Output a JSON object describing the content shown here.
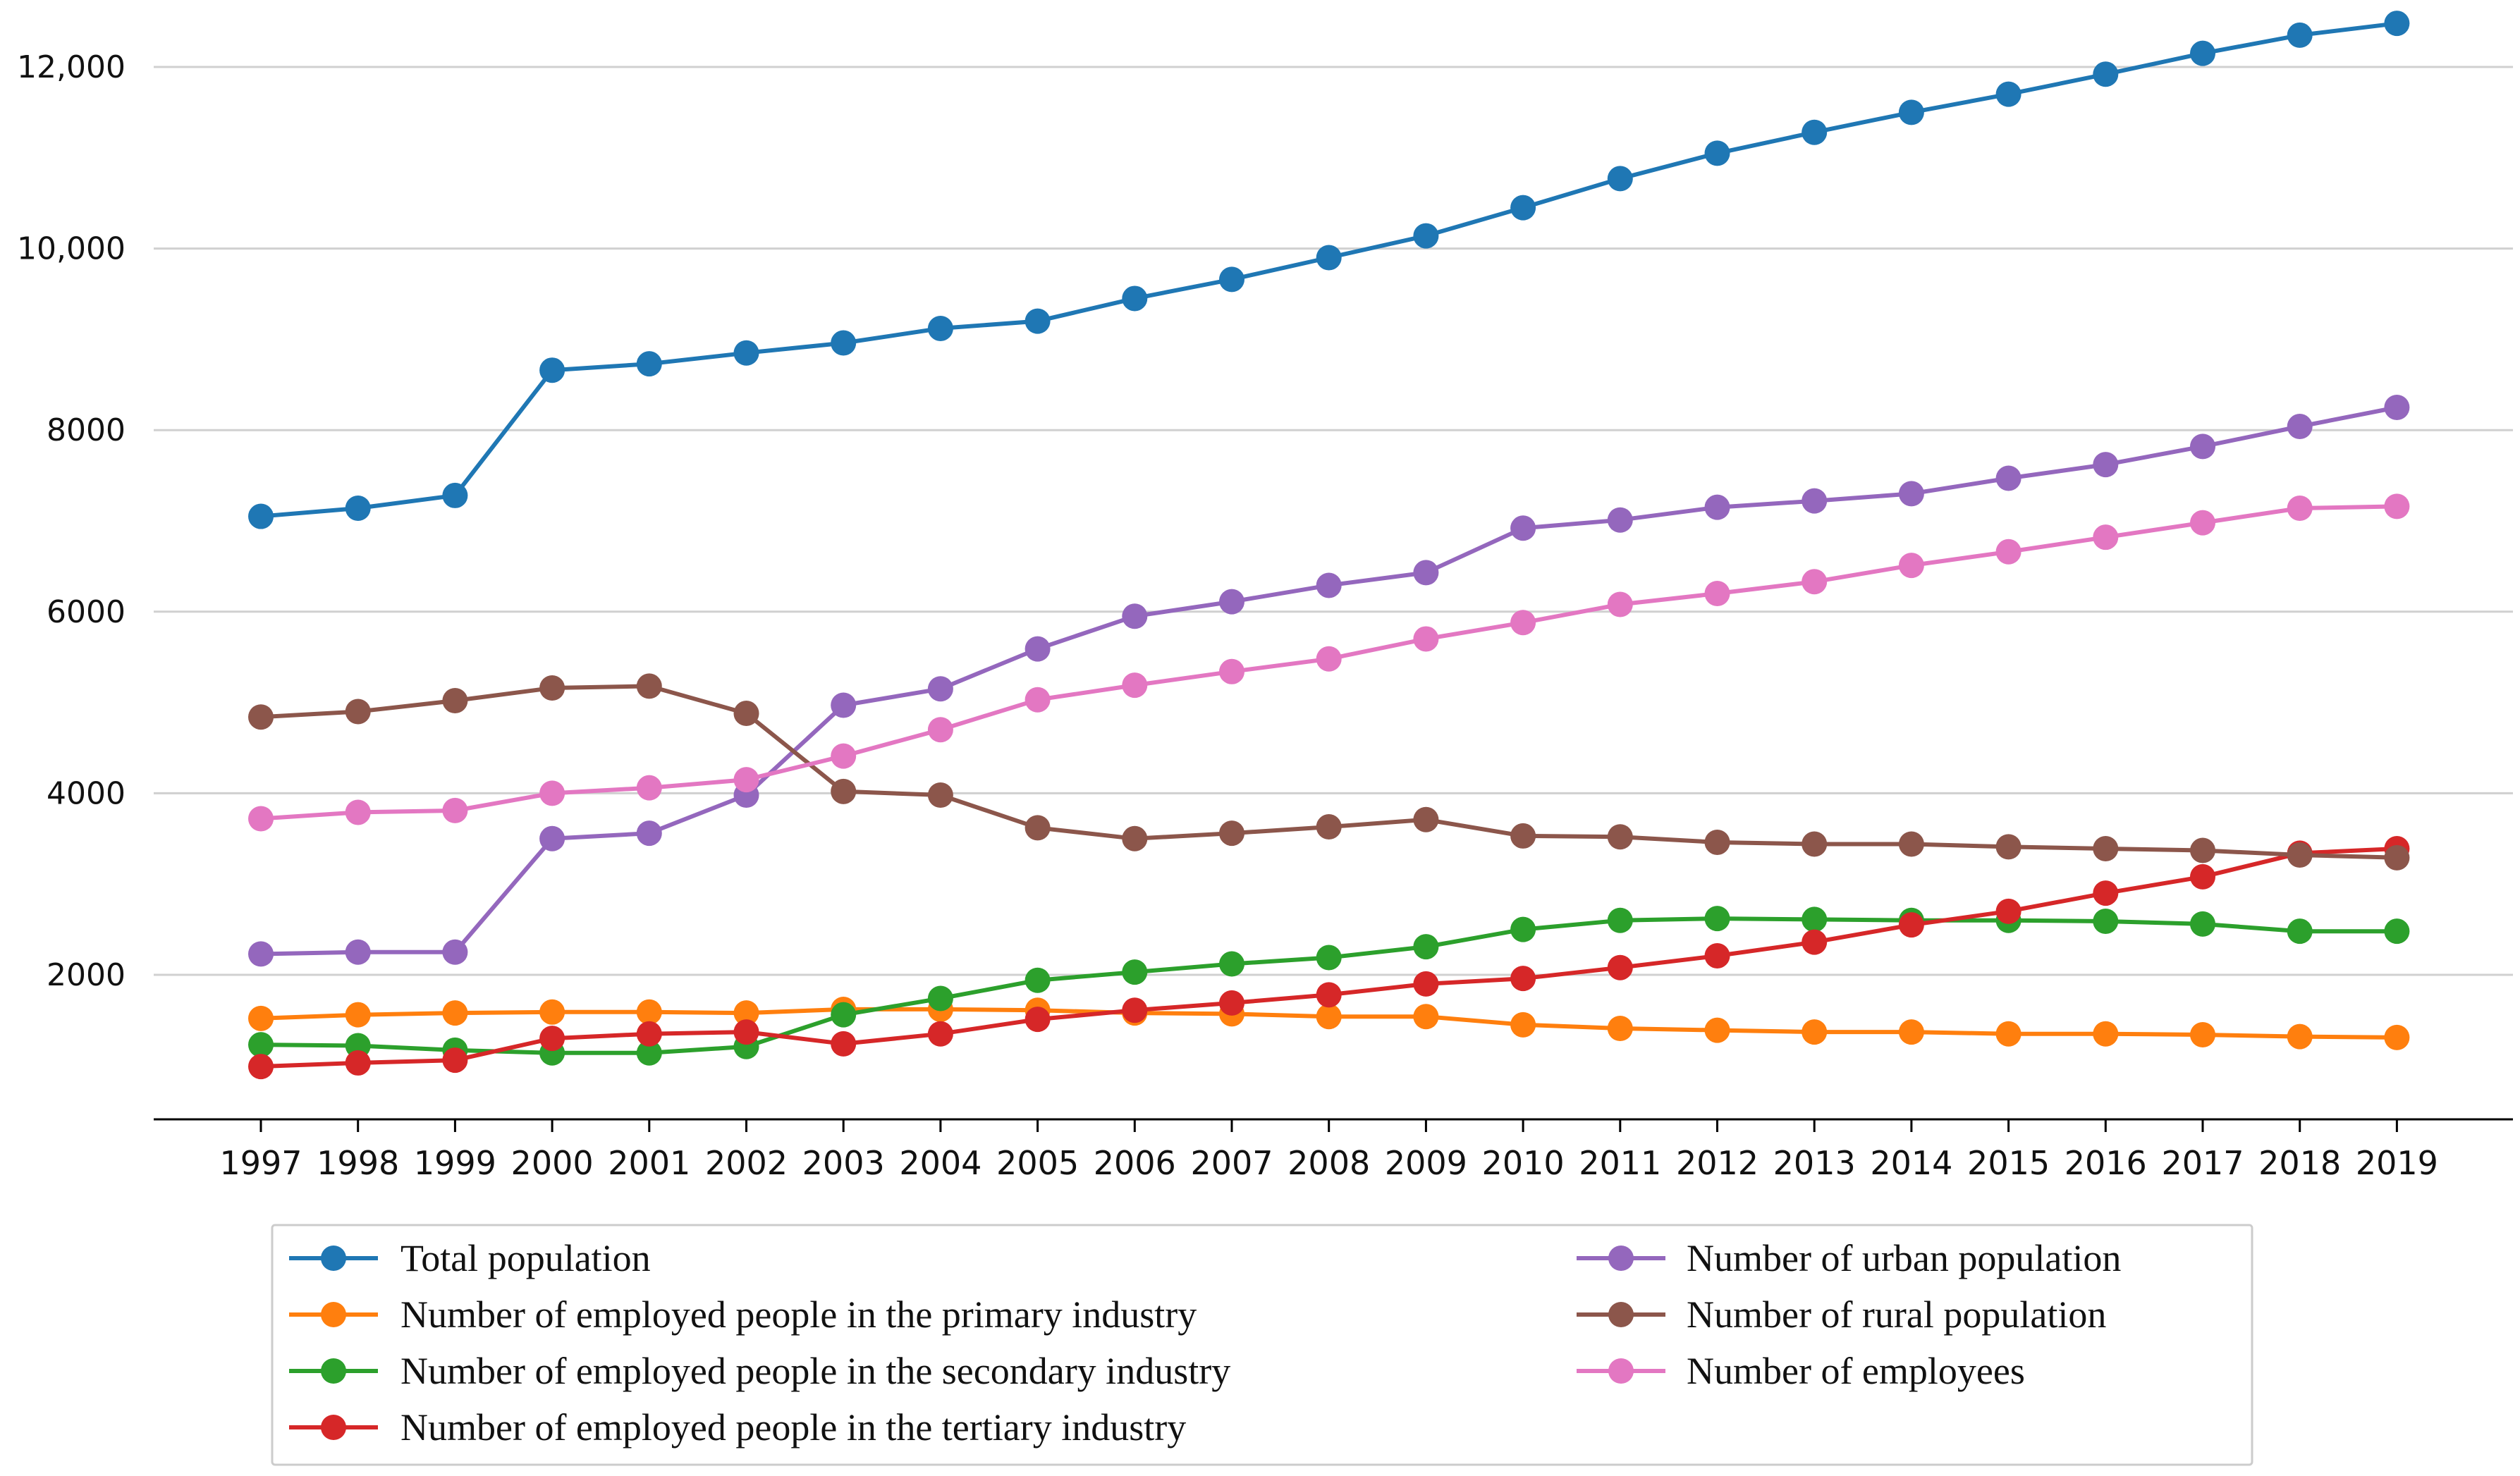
{
  "chart_data": {
    "type": "line",
    "title": "",
    "xlabel": "",
    "ylabel": "",
    "ylim": [
      600,
      12500
    ],
    "grid": "horizontal",
    "legend_position": "bottom",
    "x": [
      "1997",
      "1998",
      "1999",
      "2000",
      "2001",
      "2002",
      "2003",
      "2004",
      "2005",
      "2006",
      "2007",
      "2008",
      "2009",
      "2010",
      "2011",
      "2012",
      "2013",
      "2014",
      "2015",
      "2016",
      "2017",
      "2018",
      "2019"
    ],
    "yticks": [
      2000,
      4000,
      6000,
      8000,
      10000,
      12000
    ],
    "ytick_labels": [
      "2000",
      "4000",
      "6000",
      "8000",
      "10,000",
      "12,000"
    ],
    "series": [
      {
        "name": "Total population",
        "color": "#1f77b4",
        "values": [
          7050,
          7140,
          7280,
          8660,
          8730,
          8850,
          8960,
          9120,
          9200,
          9450,
          9660,
          9900,
          10140,
          10450,
          10770,
          11050,
          11280,
          11500,
          11700,
          11920,
          12150,
          12350,
          12480
        ]
      },
      {
        "name": "Number of employed people in the primary industry",
        "color": "#ff7f0e",
        "values": [
          1520,
          1560,
          1580,
          1590,
          1590,
          1580,
          1620,
          1620,
          1610,
          1580,
          1570,
          1540,
          1540,
          1450,
          1410,
          1390,
          1370,
          1370,
          1350,
          1350,
          1340,
          1320,
          1310
        ]
      },
      {
        "name": "Number of employed people in the secondary industry",
        "color": "#2ca02c",
        "values": [
          1230,
          1220,
          1170,
          1140,
          1140,
          1210,
          1560,
          1740,
          1940,
          2030,
          2120,
          2190,
          2310,
          2500,
          2600,
          2620,
          2610,
          2600,
          2600,
          2590,
          2560,
          2480,
          2480
        ]
      },
      {
        "name": "Number of employed people in the tertiary industry",
        "color": "#d62728",
        "values": [
          990,
          1030,
          1060,
          1300,
          1350,
          1370,
          1240,
          1350,
          1510,
          1610,
          1690,
          1780,
          1900,
          1960,
          2080,
          2210,
          2360,
          2550,
          2700,
          2900,
          3080,
          3340,
          3390
        ]
      },
      {
        "name": "Number of urban population",
        "color": "#9467bd",
        "values": [
          2230,
          2250,
          2250,
          3500,
          3560,
          3980,
          4970,
          5150,
          5590,
          5950,
          6110,
          6290,
          6430,
          6920,
          7010,
          7150,
          7220,
          7300,
          7470,
          7620,
          7820,
          8040,
          8250
        ]
      },
      {
        "name": "Number of rural population",
        "color": "#8c564b",
        "values": [
          4840,
          4900,
          5020,
          5160,
          5180,
          4880,
          4020,
          3980,
          3620,
          3500,
          3560,
          3630,
          3710,
          3530,
          3520,
          3460,
          3440,
          3440,
          3410,
          3390,
          3370,
          3320,
          3290
        ]
      },
      {
        "name": "Number of employees",
        "color": "#e377c2",
        "values": [
          3720,
          3790,
          3810,
          4000,
          4060,
          4150,
          4410,
          4700,
          5030,
          5190,
          5340,
          5480,
          5700,
          5880,
          6080,
          6200,
          6330,
          6510,
          6660,
          6820,
          6980,
          7140,
          7160
        ]
      }
    ]
  }
}
